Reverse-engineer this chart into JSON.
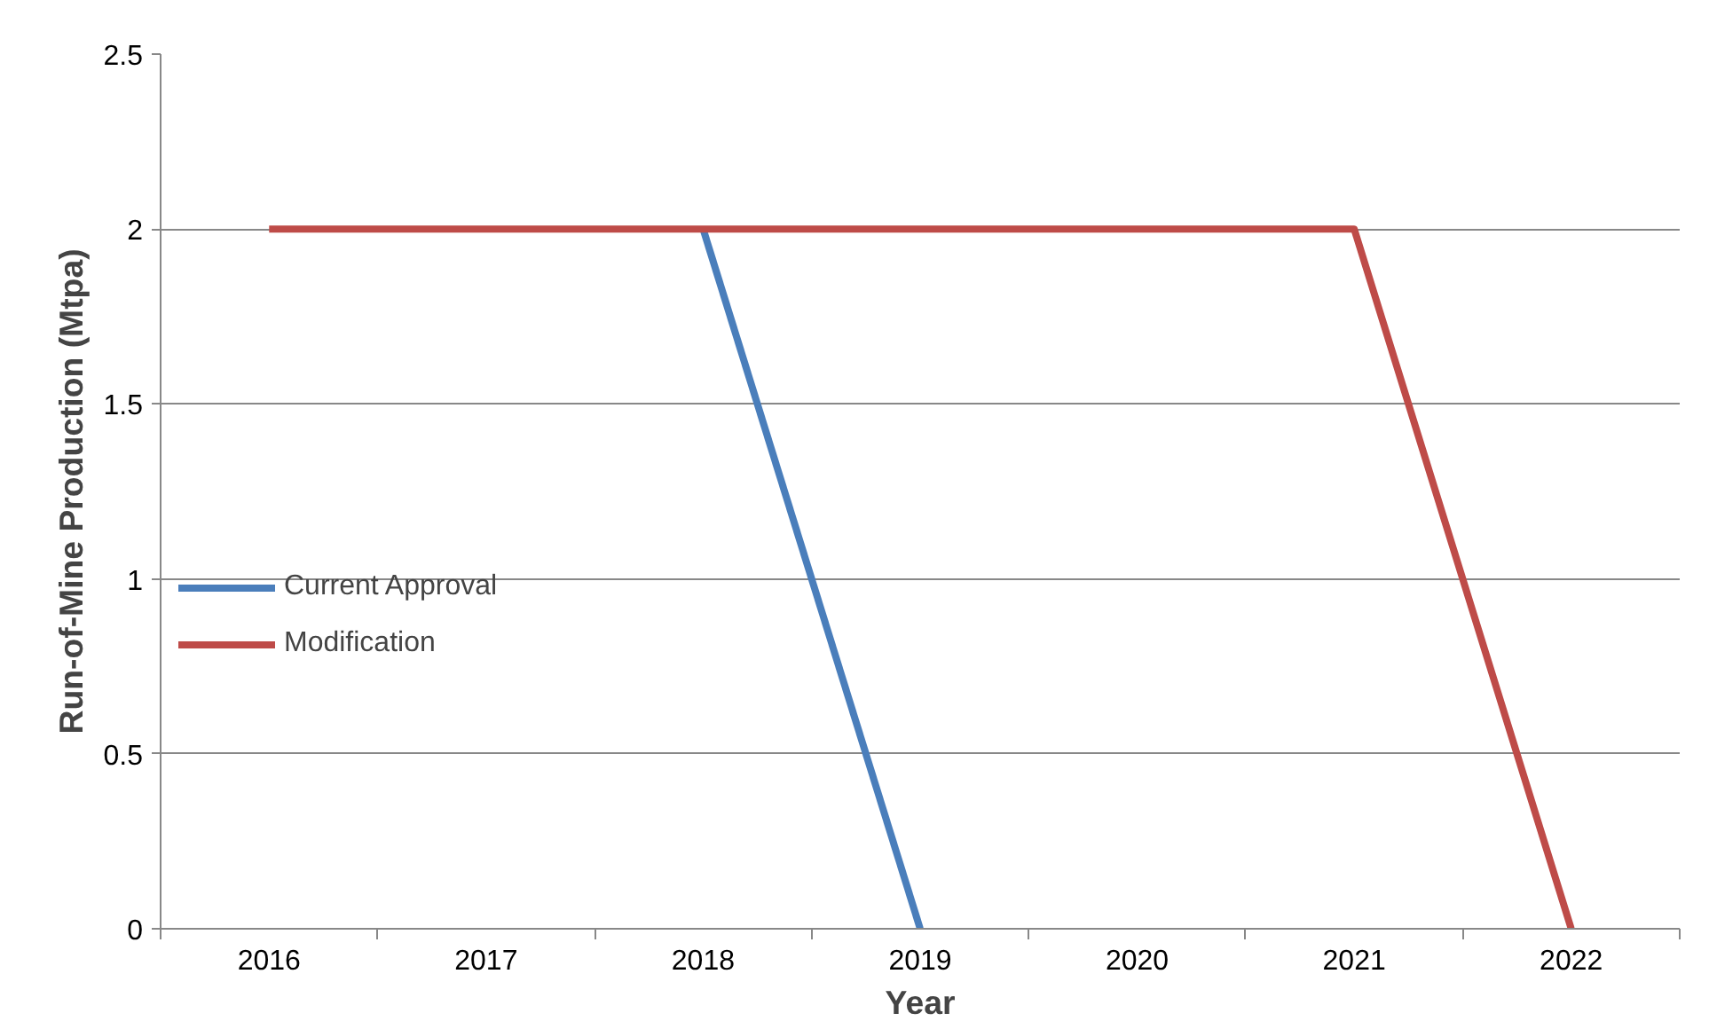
{
  "chart_data": {
    "type": "line",
    "xlabel": "Year",
    "ylabel": "Run-of-Mine Production (Mtpa)",
    "categories": [
      "2016",
      "2017",
      "2018",
      "2019",
      "2020",
      "2021",
      "2022"
    ],
    "series": [
      {
        "name": "Current Approval",
        "color": "#4a7ebb",
        "values": [
          null,
          null,
          2,
          0,
          null,
          null,
          null
        ]
      },
      {
        "name": "Modification",
        "color": "#be4b48",
        "values": [
          2,
          2,
          2,
          2,
          2,
          2,
          0
        ]
      }
    ],
    "ylim": [
      0,
      2.5
    ],
    "yticks": [
      0,
      0.5,
      1,
      1.5,
      2,
      2.5
    ],
    "grid": "y",
    "legend": "left",
    "marker": "none",
    "line_style": "solid"
  }
}
